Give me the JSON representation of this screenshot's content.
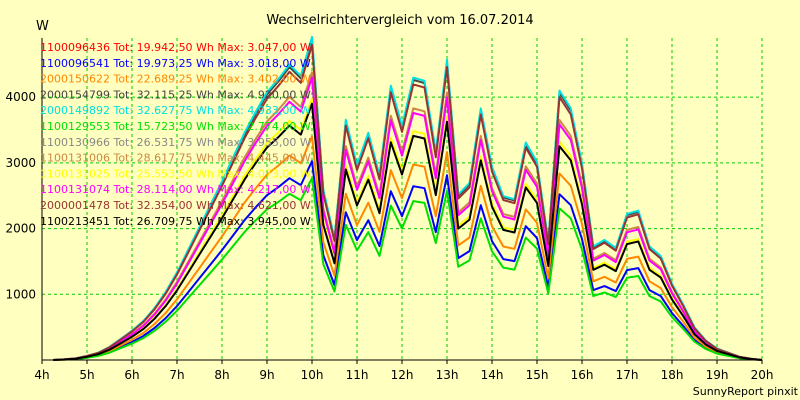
{
  "chart_data": {
    "type": "line",
    "title": "Wechselrichtervergleich vom 16.07.2014",
    "ylabel": "W",
    "xlabel": "",
    "footer": "SunnyReport pinxit",
    "ylim": [
      0,
      4900
    ],
    "xlim": [
      4,
      20
    ],
    "grid": true,
    "legend_placement": "top-left",
    "y_ticks": [
      {
        "value": 1000,
        "label": "1000"
      },
      {
        "value": 2000,
        "label": "2000"
      },
      {
        "value": 3000,
        "label": "3000"
      },
      {
        "value": 4000,
        "label": "4000"
      }
    ],
    "x_ticks": [
      {
        "value": 4,
        "label": "4h"
      },
      {
        "value": 5,
        "label": "5h"
      },
      {
        "value": 6,
        "label": "6h"
      },
      {
        "value": 7,
        "label": "7h"
      },
      {
        "value": 8,
        "label": "8h"
      },
      {
        "value": 9,
        "label": "9h"
      },
      {
        "value": 10,
        "label": "10h"
      },
      {
        "value": 11,
        "label": "11h"
      },
      {
        "value": 12,
        "label": "12h"
      },
      {
        "value": 13,
        "label": "13h"
      },
      {
        "value": 14,
        "label": "14h"
      },
      {
        "value": 15,
        "label": "15h"
      },
      {
        "value": 16,
        "label": "16h"
      },
      {
        "value": 17,
        "label": "17h"
      },
      {
        "value": 18,
        "label": "18h"
      },
      {
        "value": 19,
        "label": "19h"
      },
      {
        "value": 20,
        "label": "20h"
      }
    ],
    "base_profile": {
      "x": [
        4.25,
        4.5,
        4.75,
        5,
        5.25,
        5.5,
        5.75,
        6,
        6.25,
        6.5,
        6.75,
        7,
        7.25,
        7.5,
        7.75,
        8,
        8.25,
        8.5,
        8.75,
        9,
        9.25,
        9.5,
        9.75,
        10,
        10.25,
        10.5,
        10.75,
        11,
        11.25,
        11.5,
        11.75,
        12,
        12.25,
        12.5,
        12.75,
        13,
        13.25,
        13.5,
        13.75,
        14,
        14.25,
        14.5,
        14.75,
        15,
        15.25,
        15.5,
        15.75,
        16,
        16.25,
        16.5,
        16.75,
        17,
        17.25,
        17.5,
        17.75,
        18,
        18.25,
        18.5,
        18.75,
        19,
        19.25,
        19.5,
        19.75,
        20
      ],
      "y": [
        0,
        4,
        10,
        25,
        45,
        80,
        130,
        180,
        240,
        320,
        420,
        540,
        680,
        820,
        960,
        1100,
        1250,
        1400,
        1530,
        1650,
        1730,
        1820,
        1750,
        1990,
        1050,
        750,
        1480,
        1200,
        1400,
        1140,
        1690,
        1440,
        1740,
        1720,
        1280,
        1850,
        1020,
        1090,
        1550,
        1190,
        1010,
        990,
        1340,
        1220,
        730,
        1660,
        1550,
        1210,
        700,
        740,
        690,
        900,
        920,
        700,
        640,
        470,
        340,
        200,
        120,
        70,
        45,
        20,
        8,
        0
      ]
    },
    "series": [
      {
        "name": "1100096436",
        "tot": "19.942,50",
        "max": "3.047,00",
        "color": "#ff0000",
        "scale": 1.53,
        "drawn": false
      },
      {
        "name": "1100096541",
        "tot": "19.973,25",
        "max": "3.018,00",
        "color": "#0000ff",
        "scale": 1.52,
        "drawn": true
      },
      {
        "name": "2000150622",
        "tot": "22.689,25",
        "max": "3.402,00",
        "color": "#ff8800",
        "scale": 1.71,
        "drawn": true
      },
      {
        "name": "2000154799",
        "tot": "32.115,25",
        "max": "4.920,00",
        "color": "#444444",
        "scale": 2.45,
        "drawn": true
      },
      {
        "name": "2000149892",
        "tot": "32.627,75",
        "max": "4.933,00",
        "color": "#00e0e0",
        "scale": 2.47,
        "drawn": true
      },
      {
        "name": "1100129553",
        "tot": "15.723,50",
        "max": "2.774,00",
        "color": "#00e000",
        "scale": 1.39,
        "drawn": true
      },
      {
        "name": "1100130966",
        "tot": "26.531,75",
        "max": "3.955,00",
        "color": "#888888",
        "scale": 1.98,
        "drawn": false
      },
      {
        "name": "1100131006",
        "tot": "28.617,75",
        "max": "4.445,00",
        "color": "#cc8844",
        "scale": 2.2,
        "drawn": true
      },
      {
        "name": "1100131025",
        "tot": "25.553,50",
        "max": "4.073,00",
        "color": "#ffff00",
        "scale": 2.0,
        "drawn": true
      },
      {
        "name": "1100131074",
        "tot": "28.114,00",
        "max": "4.217,00",
        "color": "#ff00ff",
        "scale": 2.16,
        "drawn": true
      },
      {
        "name": "2000001478",
        "tot": "32.354,00",
        "max": "4.621,00",
        "color": "#993333",
        "scale": 2.41,
        "drawn": true
      },
      {
        "name": "1100213451",
        "tot": "26.709,75",
        "max": "3.945,00",
        "color": "#000000",
        "scale": 1.96,
        "drawn": true
      }
    ],
    "legend_tot_label": "Tot:",
    "legend_unit": "Wh",
    "legend_max_label": "Max:",
    "legend_max_unit": "W"
  }
}
